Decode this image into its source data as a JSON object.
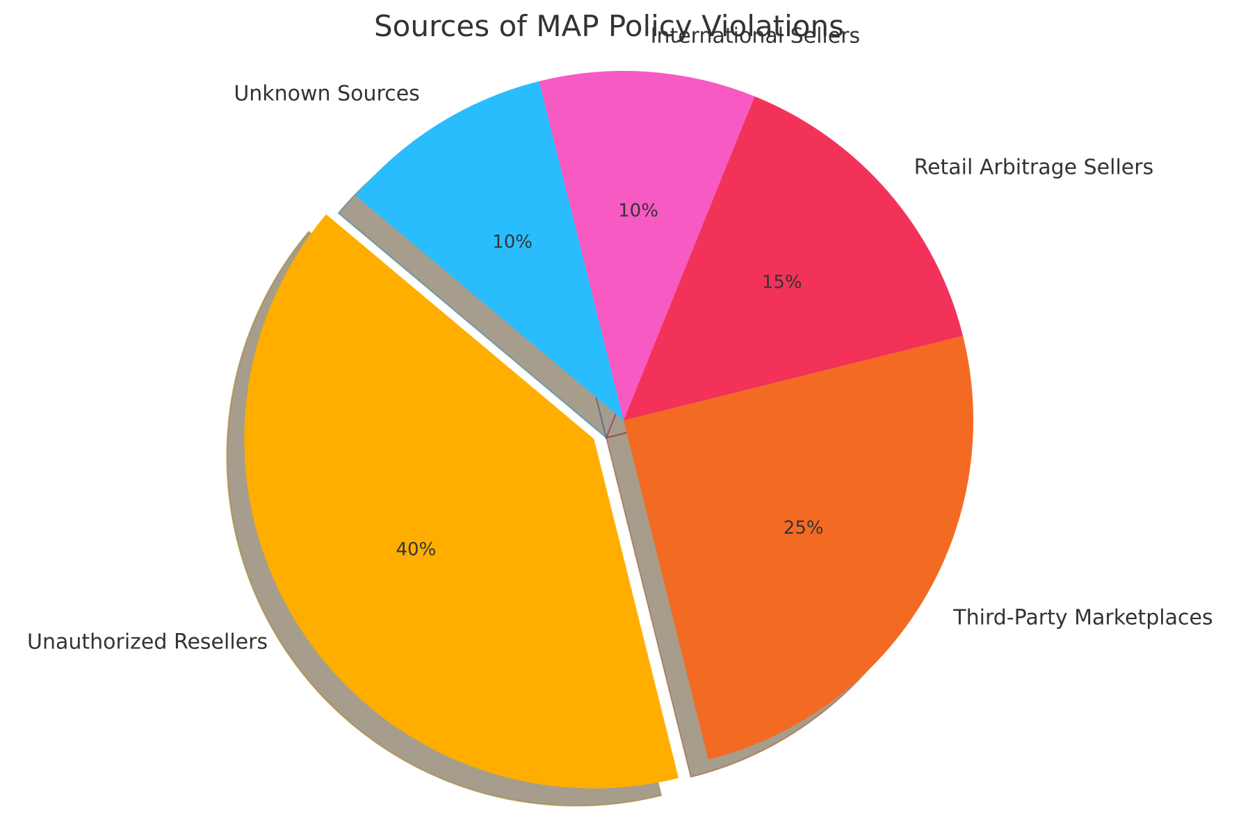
{
  "chart_data": {
    "type": "pie",
    "title": "Sources of MAP Policy Violations",
    "slices": [
      {
        "label": "Unauthorized Resellers",
        "value": 40,
        "pct_label": "40%",
        "color": "#FFAE00",
        "exploded": true
      },
      {
        "label": "Third-Party Marketplaces",
        "value": 25,
        "pct_label": "25%",
        "color": "#F36B23",
        "exploded": false
      },
      {
        "label": "Retail Arbitrage Sellers",
        "value": 15,
        "pct_label": "15%",
        "color": "#F3325A",
        "exploded": false
      },
      {
        "label": "International Sellers",
        "value": 10,
        "pct_label": "10%",
        "color": "#F75AC3",
        "exploded": false
      },
      {
        "label": "Unknown Sources",
        "value": 10,
        "pct_label": "10%",
        "color": "#2ABDFD",
        "exploded": false
      }
    ],
    "start_angle_deg": 140,
    "direction": "counterclockwise",
    "shadow": true,
    "legend": "none"
  }
}
